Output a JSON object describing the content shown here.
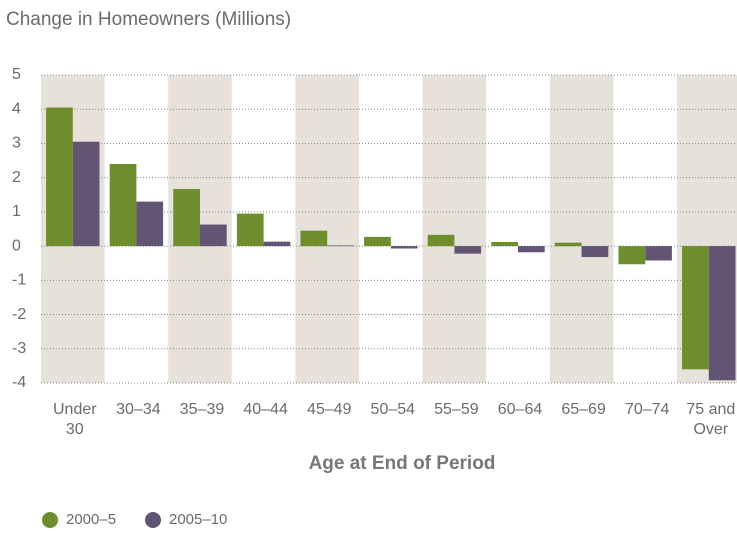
{
  "chart_data": {
    "type": "bar",
    "title": "Change in Homeowners (Millions)",
    "x_label": "Age at End of Period",
    "categories": [
      "Under 30",
      "30–34",
      "35–39",
      "40–44",
      "45–49",
      "50–54",
      "55–59",
      "60–64",
      "65–69",
      "70–74",
      "75 and Over"
    ],
    "series": [
      {
        "name": "2000–5",
        "color": "#6e8e2e",
        "values": [
          4.05,
          2.4,
          1.67,
          0.95,
          0.45,
          0.27,
          0.33,
          0.12,
          0.1,
          -0.53,
          -3.6
        ]
      },
      {
        "name": "2005–10",
        "color": "#625574",
        "values": [
          3.05,
          1.3,
          0.63,
          0.13,
          0.02,
          -0.07,
          -0.22,
          -0.18,
          -0.32,
          -0.42,
          -3.92
        ]
      }
    ],
    "ylim": [
      -4,
      5
    ],
    "yticks": [
      -4,
      -3,
      -2,
      -1,
      0,
      1,
      2,
      3,
      4,
      5
    ],
    "grid": true,
    "legend": "bottom-left"
  }
}
